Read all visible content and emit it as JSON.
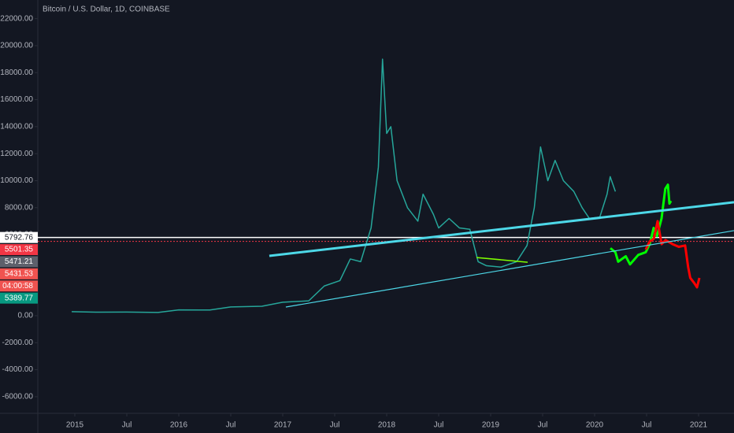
{
  "chart_data": {
    "type": "line",
    "title": "Bitcoin / U.S. Dollar, 1D, COINBASE",
    "xlim": [
      2014.644,
      2021.341
    ],
    "ylim": [
      -7230,
      23380
    ],
    "xticks": [
      2015,
      {
        "value": 2015.5,
        "label": "Jul"
      },
      2016,
      {
        "value": 2016.5,
        "label": "Jul"
      },
      2017,
      {
        "value": 2017.5,
        "label": "Jul"
      },
      2018,
      {
        "value": 2018.5,
        "label": "Jul"
      },
      2019,
      {
        "value": 2019.5,
        "label": "Jul"
      },
      2020,
      {
        "value": 2020.5,
        "label": "Jul"
      },
      2021
    ],
    "yticks": [
      {
        "value": 22000,
        "label": "22000.00"
      },
      {
        "value": 20000,
        "label": "20000.00"
      },
      {
        "value": 18000,
        "label": "18000.00"
      },
      {
        "value": 16000,
        "label": "16000.00"
      },
      {
        "value": 14000,
        "label": "14000.00"
      },
      {
        "value": 12000,
        "label": "12000.00"
      },
      {
        "value": 10000,
        "label": "10000.00"
      },
      {
        "value": 8000,
        "label": "8000.00"
      },
      {
        "value": 6000,
        "label": "6000.00"
      },
      {
        "value": 4000,
        "label": "4000.00"
      },
      {
        "value": 2000,
        "label": "2000.00"
      },
      {
        "value": 0,
        "label": "0.00"
      },
      {
        "value": -2000,
        "label": "-2000.00"
      },
      {
        "value": -4000,
        "label": "-4000.00"
      },
      {
        "value": -6000,
        "label": "-6000.00"
      }
    ],
    "series": [
      {
        "color": "#26a69a",
        "width": 1.5,
        "x": [
          2014.97,
          2015.2,
          2015.5,
          2015.8,
          2016.0,
          2016.3,
          2016.5,
          2016.8,
          2017.0,
          2017.25,
          2017.4,
          2017.55,
          2017.65,
          2017.75,
          2017.85,
          2017.92,
          2017.96,
          2018.0,
          2018.04,
          2018.1,
          2018.2,
          2018.3,
          2018.35,
          2018.45,
          2018.5,
          2018.6,
          2018.7,
          2018.8,
          2018.88,
          2018.96,
          2019.1,
          2019.25,
          2019.35,
          2019.42,
          2019.48,
          2019.55,
          2019.62,
          2019.7,
          2019.8,
          2019.88,
          2019.95,
          2020.05,
          2020.12,
          2020.15,
          2020.2
        ],
        "values": [
          300,
          260,
          270,
          240,
          430,
          420,
          650,
          700,
          1000,
          1100,
          2200,
          2600,
          4200,
          4000,
          6500,
          11000,
          19000,
          13500,
          14000,
          10000,
          8000,
          7000,
          9000,
          7500,
          6500,
          7200,
          6500,
          6400,
          4000,
          3700,
          3600,
          4000,
          5200,
          8000,
          12500,
          10000,
          11500,
          10000,
          9200,
          8000,
          7200,
          7300,
          9000,
          10300,
          9200
        ]
      },
      {
        "color": "#00ff00",
        "width": 3,
        "x": [
          2020.152,
          2020.2,
          2020.227,
          2020.3,
          2020.341,
          2020.42,
          2020.492,
          2020.53,
          2020.568,
          2020.6,
          2020.644,
          2020.68,
          2020.705,
          2020.72,
          2020.735
        ],
        "values": [
          5000,
          4700,
          4000,
          4400,
          3800,
          4500,
          4700,
          5300,
          6500,
          5900,
          7200,
          9400,
          9700,
          8300,
          8500
        ]
      },
      {
        "color": "#ff0000",
        "width": 3,
        "x": [
          2020.492,
          2020.53,
          2020.57,
          2020.606,
          2020.645,
          2020.682,
          2020.75,
          2020.81,
          2020.871,
          2020.9,
          2020.92,
          2020.96,
          2020.985,
          2021.008
        ],
        "values": [
          4900,
          5500,
          5700,
          7000,
          5300,
          5600,
          5300,
          5100,
          5200,
          3600,
          2800,
          2400,
          2100,
          2800
        ]
      }
    ],
    "trendlines": [
      {
        "color": "#4dd8e8",
        "width": 3,
        "x": [
          2016.871,
          2021.341
        ],
        "values": [
          4430,
          8400
        ]
      },
      {
        "color": "#4dd8e8",
        "width": 1.2,
        "x": [
          2017.03,
          2021.341
        ],
        "values": [
          641,
          6300
        ]
      },
      {
        "color": "#7fff00",
        "width": 1.5,
        "x": [
          2018.864,
          2019.356
        ],
        "values": [
          4310,
          3960
        ]
      }
    ],
    "price_labels": [
      {
        "value": 5792.76,
        "bg": "#ffffff",
        "fg": "#131722",
        "line": "solid"
      },
      {
        "value": 5501.35,
        "bg": "#f23645",
        "fg": "#ffffff",
        "line": "dotted"
      },
      {
        "value": 5471.21,
        "bg": "#5d606b",
        "fg": "#ffffff"
      },
      {
        "value": 5431.53,
        "bg": "#f05350",
        "fg": "#ffffff"
      },
      {
        "label": "04:00:58",
        "bg": "#f05350",
        "fg": "#ffffff"
      },
      {
        "value": 5389.77,
        "bg": "#089981",
        "fg": "#ffffff"
      }
    ]
  }
}
